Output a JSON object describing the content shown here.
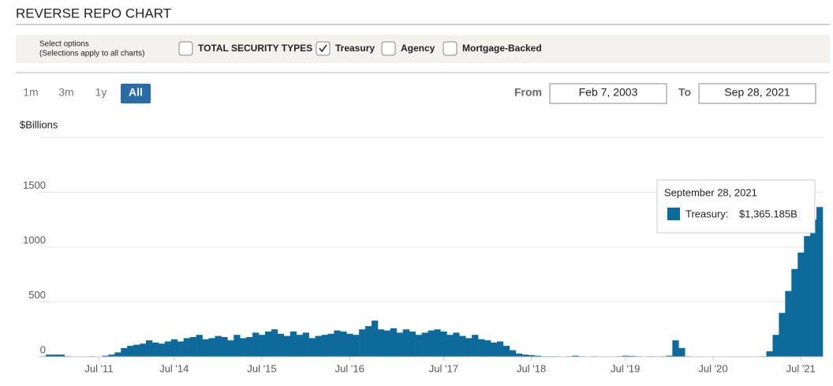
{
  "header": {
    "title": "REVERSE REPO CHART"
  },
  "options": {
    "label_1": "Select options",
    "label_2": "(Selections apply to all charts)",
    "items": [
      {
        "label": "TOTAL SECURITY TYPES",
        "checked": false
      },
      {
        "label": "Treasury",
        "checked": true
      },
      {
        "label": "Agency",
        "checked": false
      },
      {
        "label": "Mortgage-Backed",
        "checked": false
      }
    ]
  },
  "range": {
    "buttons": [
      "1m",
      "3m",
      "1y",
      "All"
    ],
    "active": "All",
    "from_label": "From",
    "from": "Feb 7, 2003",
    "to_label": "To",
    "to": "Sep 28, 2021"
  },
  "tooltip": {
    "date": "September 28, 2021",
    "series": "Treasury:",
    "value": "$1,365.185B"
  },
  "chart_data": {
    "type": "bar",
    "y_label": "$Billions",
    "categories": [
      null,
      null,
      null,
      null,
      null,
      null,
      null,
      null,
      null,
      "Jul '11",
      null,
      null,
      null,
      null,
      null,
      null,
      null,
      null,
      null,
      null,
      null,
      "Jul '14",
      null,
      null,
      null,
      null,
      null,
      null,
      null,
      null,
      null,
      null,
      null,
      null,
      null,
      "Jul '15",
      null,
      null,
      null,
      null,
      null,
      null,
      null,
      null,
      null,
      null,
      null,
      null,
      null,
      "Jul '16",
      null,
      null,
      null,
      null,
      null,
      null,
      null,
      null,
      null,
      null,
      null,
      null,
      null,
      null,
      "Jul '17",
      null,
      null,
      null,
      null,
      null,
      null,
      null,
      null,
      null,
      null,
      null,
      null,
      null,
      "Jul '18",
      null,
      null,
      null,
      null,
      null,
      null,
      null,
      null,
      null,
      null,
      null,
      null,
      null,
      null,
      "Jul '19",
      null,
      null,
      null,
      null,
      null,
      null,
      null,
      null,
      null,
      null,
      null,
      null,
      null,
      "Jul '20",
      null,
      null,
      null,
      null,
      null,
      null,
      null,
      null,
      null,
      null,
      null,
      null,
      null,
      "Jul '21",
      null,
      null,
      null
    ],
    "series": [
      {
        "name": "Treasury",
        "color": "#0e6a9b",
        "values": [
          5,
          20,
          20,
          20,
          5,
          0,
          0,
          0,
          5,
          0,
          10,
          20,
          40,
          80,
          100,
          110,
          120,
          150,
          130,
          120,
          140,
          160,
          140,
          170,
          180,
          200,
          160,
          170,
          190,
          180,
          150,
          200,
          170,
          180,
          220,
          200,
          230,
          250,
          210,
          190,
          230,
          200,
          220,
          170,
          190,
          200,
          210,
          240,
          230,
          210,
          200,
          250,
          280,
          330,
          250,
          240,
          260,
          220,
          250,
          230,
          200,
          220,
          240,
          250,
          230,
          200,
          220,
          190,
          170,
          200,
          160,
          150,
          130,
          140,
          100,
          60,
          30,
          20,
          15,
          10,
          5,
          5,
          5,
          3,
          5,
          10,
          5,
          3,
          5,
          3,
          2,
          3,
          5,
          10,
          8,
          5,
          3,
          5,
          3,
          5,
          10,
          150,
          80,
          5,
          2,
          1,
          1,
          1,
          1,
          1,
          1,
          1,
          1,
          1,
          2,
          5,
          50,
          200,
          400,
          600,
          800,
          950,
          1100,
          1250,
          1365.185
        ]
      }
    ],
    "ylim": [
      0,
      2000
    ],
    "yticks": [
      0,
      500,
      1000,
      1500
    ],
    "grid": true
  }
}
